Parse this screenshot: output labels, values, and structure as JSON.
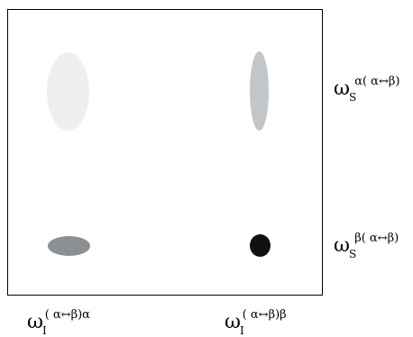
{
  "labels": {
    "right_top": {
      "omega": "ω",
      "sub": "S",
      "sup": "α( α↔β)"
    },
    "right_bottom": {
      "omega": "ω",
      "sub": "S",
      "sup": "β( α↔β)"
    },
    "bottom_left": {
      "omega": "ω",
      "sub": "I",
      "sup": "( α↔β)α"
    },
    "bottom_right": {
      "omega": "ω",
      "sub": "I",
      "sup": "( α↔β)β"
    }
  },
  "peaks": [
    {
      "id": "top-left",
      "color": "#efefef"
    },
    {
      "id": "top-right",
      "color": "#c3c6c9"
    },
    {
      "id": "bottom-left",
      "color": "#8c9093"
    },
    {
      "id": "bottom-right",
      "color": "#101010"
    }
  ]
}
